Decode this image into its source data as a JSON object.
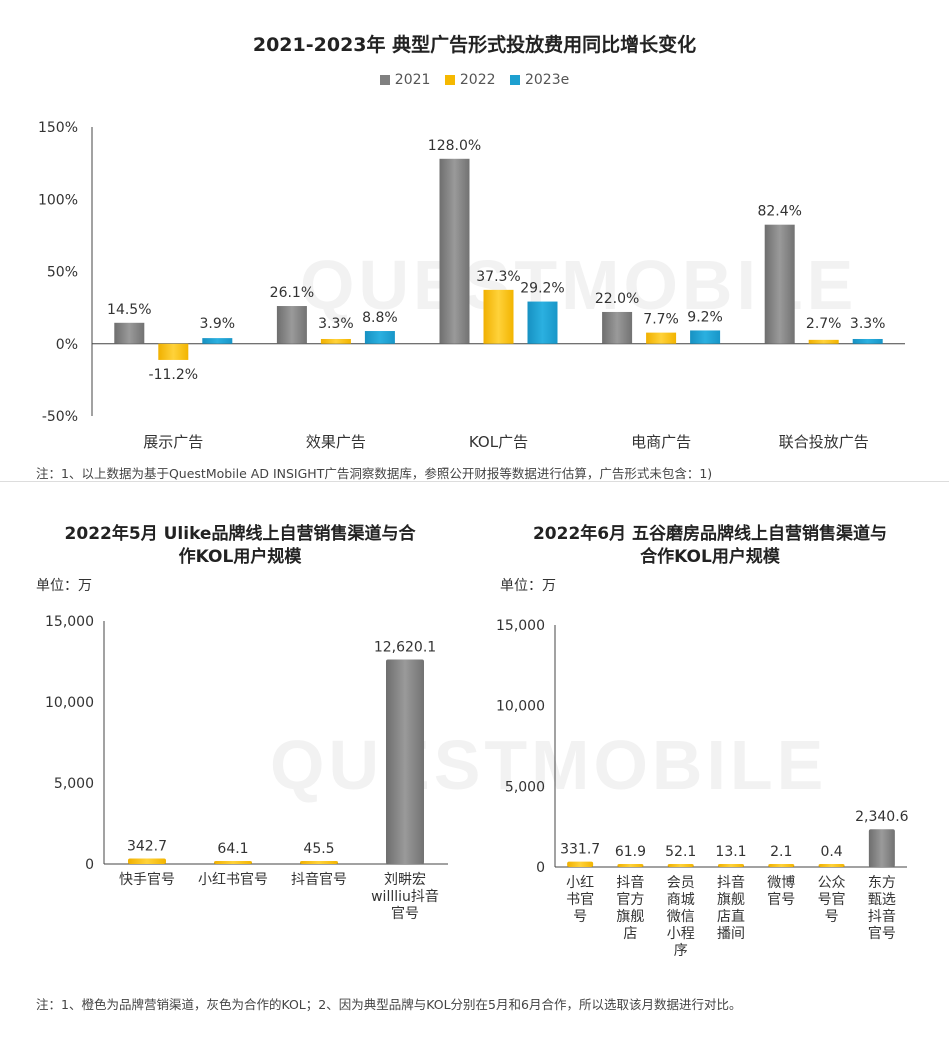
{
  "watermark": "QUESTMOBILE",
  "charts": {
    "top": {
      "title": "2021-2023年 典型广告形式投放费用同比增长变化",
      "legend": [
        {
          "label": "2021",
          "color": "#808080"
        },
        {
          "label": "2022",
          "color": "#f5b800"
        },
        {
          "label": "2023e",
          "color": "#1ea0d0"
        }
      ],
      "note": "注：1、以上数据为基于QuestMobile AD INSIGHT广告洞察数据库，参照公开财报等数据进行估算，广告形式未包含：1)"
    },
    "bottom_left": {
      "title_line1": "2022年5月 Ulike品牌线上自营销售渠道与合",
      "title_line2": "作KOL用户规模",
      "unit": "单位：万"
    },
    "bottom_right": {
      "title_line1": "2022年6月 五谷磨房品牌线上自营销售渠道与",
      "title_line2": "合作KOL用户规模",
      "unit": "单位：万"
    },
    "bottom_note": "注：1、橙色为品牌营销渠道，灰色为合作的KOL；2、因为典型品牌与KOL分别在5月和6月合作，所以选取该月数据进行对比。"
  },
  "chart_data": [
    {
      "type": "bar",
      "title": "2021-2023年 典型广告形式投放费用同比增长变化",
      "categories": [
        "展示广告",
        "效果广告",
        "KOL广告",
        "电商广告",
        "联合投放广告"
      ],
      "series": [
        {
          "name": "2021",
          "color": "#808080",
          "values": [
            14.5,
            26.1,
            128.0,
            22.0,
            82.4
          ],
          "labels": [
            "14.5%",
            "26.1%",
            "128.0%",
            "22.0%",
            "82.4%"
          ]
        },
        {
          "name": "2022",
          "color": "#f5b800",
          "values": [
            -11.2,
            3.3,
            37.3,
            7.7,
            2.7
          ],
          "labels": [
            "-11.2%",
            "3.3%",
            "37.3%",
            "7.7%",
            "2.7%"
          ]
        },
        {
          "name": "2023e",
          "color": "#1ea0d0",
          "values": [
            3.9,
            8.8,
            29.2,
            9.2,
            3.3
          ],
          "labels": [
            "3.9%",
            "8.8%",
            "29.2%",
            "9.2%",
            "3.3%"
          ]
        }
      ],
      "ylim": [
        -50,
        150
      ],
      "yticks": [
        -50,
        0,
        50,
        100,
        150
      ],
      "ytick_labels": [
        "-50%",
        "0%",
        "50%",
        "100%",
        "150%"
      ],
      "grid": false
    },
    {
      "type": "bar",
      "title": "2022年5月 Ulike品牌线上自营销售渠道与合作KOL用户规模",
      "categories": [
        [
          "快手官号"
        ],
        [
          "小红书官号"
        ],
        [
          "抖音官号"
        ],
        [
          "刘畊宏",
          "willliu抖音",
          "官号"
        ]
      ],
      "values": [
        342.7,
        64.1,
        45.5,
        12620.1
      ],
      "labels": [
        "342.7",
        "64.1",
        "45.5",
        "12,620.1"
      ],
      "colors": [
        "#f5b800",
        "#f5b800",
        "#f5b800",
        "#808080"
      ],
      "ylim": [
        0,
        15000
      ],
      "yticks": [
        0,
        5000,
        10000,
        15000
      ],
      "ytick_labels": [
        "0",
        "5,000",
        "10,000",
        "15,000"
      ],
      "grid": false
    },
    {
      "type": "bar",
      "title": "2022年6月 五谷磨房品牌线上自营销售渠道与合作KOL用户规模",
      "categories": [
        [
          "小红",
          "书官",
          "号"
        ],
        [
          "抖音",
          "官方",
          "旗舰",
          "店"
        ],
        [
          "会员",
          "商城",
          "微信",
          "小程",
          "序"
        ],
        [
          "抖音",
          "旗舰",
          "店直",
          "播间"
        ],
        [
          "微博",
          "官号"
        ],
        [
          "公众",
          "号官",
          "号"
        ],
        [
          "东方",
          "甄选",
          "抖音",
          "官号"
        ]
      ],
      "values": [
        331.7,
        61.9,
        52.1,
        13.1,
        2.1,
        0.4,
        2340.6
      ],
      "labels": [
        "331.7",
        "61.9",
        "52.1",
        "13.1",
        "2.1",
        "0.4",
        "2,340.6"
      ],
      "colors": [
        "#f5b800",
        "#f5b800",
        "#f5b800",
        "#f5b800",
        "#f5b800",
        "#f5b800",
        "#808080"
      ],
      "ylim": [
        0,
        15000
      ],
      "yticks": [
        0,
        5000,
        10000,
        15000
      ],
      "ytick_labels": [
        "0",
        "5,000",
        "10,000",
        "15,000"
      ],
      "grid": false
    }
  ]
}
